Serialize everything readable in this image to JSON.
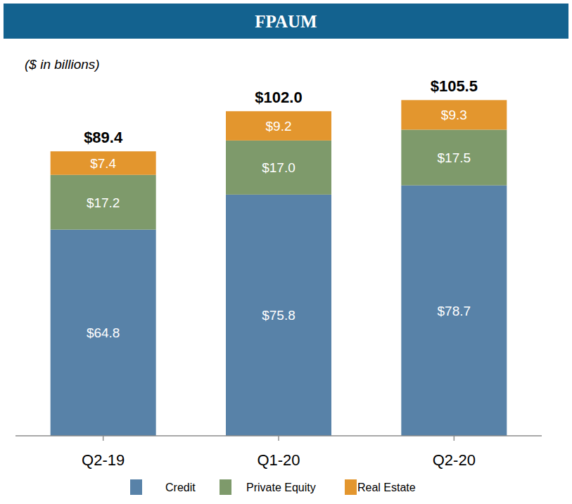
{
  "chart_data": {
    "type": "bar",
    "title": "FPAUM",
    "subtitle": "($ in billions)",
    "categories": [
      "Q2-19",
      "Q1-20",
      "Q2-20"
    ],
    "series": [
      {
        "name": "Credit",
        "color": "#5882a8",
        "values": [
          64.8,
          75.8,
          78.7
        ],
        "value_labels": [
          "$64.8",
          "$75.8",
          "$78.7"
        ]
      },
      {
        "name": "Private Equity",
        "color": "#7e9a6b",
        "values": [
          17.2,
          17.0,
          17.5
        ],
        "value_labels": [
          "$17.2",
          "$17.0",
          "$17.5"
        ]
      },
      {
        "name": "Real Estate",
        "color": "#e3962e",
        "values": [
          7.4,
          9.2,
          9.3
        ],
        "value_labels": [
          "$7.4",
          "$9.2",
          "$9.3"
        ]
      }
    ],
    "totals": [
      89.4,
      102.0,
      105.5
    ],
    "total_labels": [
      "$89.4",
      "$102.0",
      "$105.5"
    ],
    "ylim": [
      0,
      110
    ],
    "stacked": true,
    "data_labels": true,
    "grid": false,
    "legend": "bottom",
    "tick_labels": "x"
  }
}
